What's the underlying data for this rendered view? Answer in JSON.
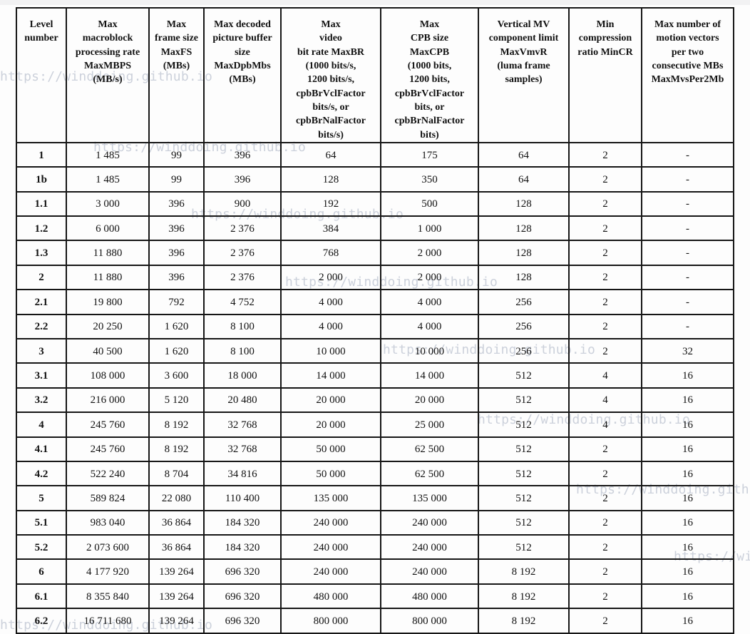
{
  "watermark": {
    "text": "https://winddoing.github.io",
    "color": "#ccd1db"
  },
  "table": {
    "headers": [
      "Level\nnumber",
      "Max\nmacroblock\nprocessing rate\nMaxMBPS\n(MB/s)",
      "Max\nframe size\nMaxFS\n(MBs)",
      "Max decoded\npicture buffer\nsize\nMaxDpbMbs\n(MBs)",
      "Max\nvideo\nbit rate MaxBR\n(1000 bits/s,\n1200 bits/s,\ncpbBrVclFactor\nbits/s, or\ncpbBrNalFactor\nbits/s)",
      "Max\nCPB size\nMaxCPB\n(1000 bits,\n1200 bits,\ncpbBrVclFactor\nbits, or\ncpbBrNalFactor\nbits)",
      "Vertical MV\ncomponent limit\nMaxVmvR\n(luma frame\nsamples)",
      "Min\ncompression\nratio MinCR",
      "Max number of\nmotion vectors\nper two\nconsecutive MBs\nMaxMvsPer2Mb"
    ],
    "rows": [
      [
        "1",
        "1 485",
        "99",
        "396",
        "64",
        "175",
        "64",
        "2",
        "-"
      ],
      [
        "1b",
        "1 485",
        "99",
        "396",
        "128",
        "350",
        "64",
        "2",
        "-"
      ],
      [
        "1.1",
        "3 000",
        "396",
        "900",
        "192",
        "500",
        "128",
        "2",
        "-"
      ],
      [
        "1.2",
        "6 000",
        "396",
        "2 376",
        "384",
        "1 000",
        "128",
        "2",
        "-"
      ],
      [
        "1.3",
        "11 880",
        "396",
        "2 376",
        "768",
        "2 000",
        "128",
        "2",
        "-"
      ],
      [
        "2",
        "11 880",
        "396",
        "2 376",
        "2 000",
        "2 000",
        "128",
        "2",
        "-"
      ],
      [
        "2.1",
        "19 800",
        "792",
        "4 752",
        "4 000",
        "4 000",
        "256",
        "2",
        "-"
      ],
      [
        "2.2",
        "20 250",
        "1 620",
        "8 100",
        "4 000",
        "4 000",
        "256",
        "2",
        "-"
      ],
      [
        "3",
        "40 500",
        "1 620",
        "8 100",
        "10 000",
        "10 000",
        "256",
        "2",
        "32"
      ],
      [
        "3.1",
        "108 000",
        "3 600",
        "18 000",
        "14 000",
        "14 000",
        "512",
        "4",
        "16"
      ],
      [
        "3.2",
        "216 000",
        "5 120",
        "20 480",
        "20 000",
        "20 000",
        "512",
        "4",
        "16"
      ],
      [
        "4",
        "245 760",
        "8 192",
        "32 768",
        "20 000",
        "25 000",
        "512",
        "4",
        "16"
      ],
      [
        "4.1",
        "245 760",
        "8 192",
        "32 768",
        "50 000",
        "62 500",
        "512",
        "2",
        "16"
      ],
      [
        "4.2",
        "522 240",
        "8 704",
        "34 816",
        "50 000",
        "62 500",
        "512",
        "2",
        "16"
      ],
      [
        "5",
        "589 824",
        "22 080",
        "110 400",
        "135 000",
        "135 000",
        "512",
        "2",
        "16"
      ],
      [
        "5.1",
        "983 040",
        "36 864",
        "184 320",
        "240 000",
        "240 000",
        "512",
        "2",
        "16"
      ],
      [
        "5.2",
        "2 073 600",
        "36 864",
        "184 320",
        "240 000",
        "240 000",
        "512",
        "2",
        "16"
      ],
      [
        "6",
        "4 177 920",
        "139 264",
        "696 320",
        "240 000",
        "240 000",
        "8 192",
        "2",
        "16"
      ],
      [
        "6.1",
        "8 355 840",
        "139 264",
        "696 320",
        "480 000",
        "480 000",
        "8 192",
        "2",
        "16"
      ],
      [
        "6.2",
        "16 711 680",
        "139 264",
        "696 320",
        "800 000",
        "800 000",
        "8 192",
        "2",
        "16"
      ]
    ]
  }
}
